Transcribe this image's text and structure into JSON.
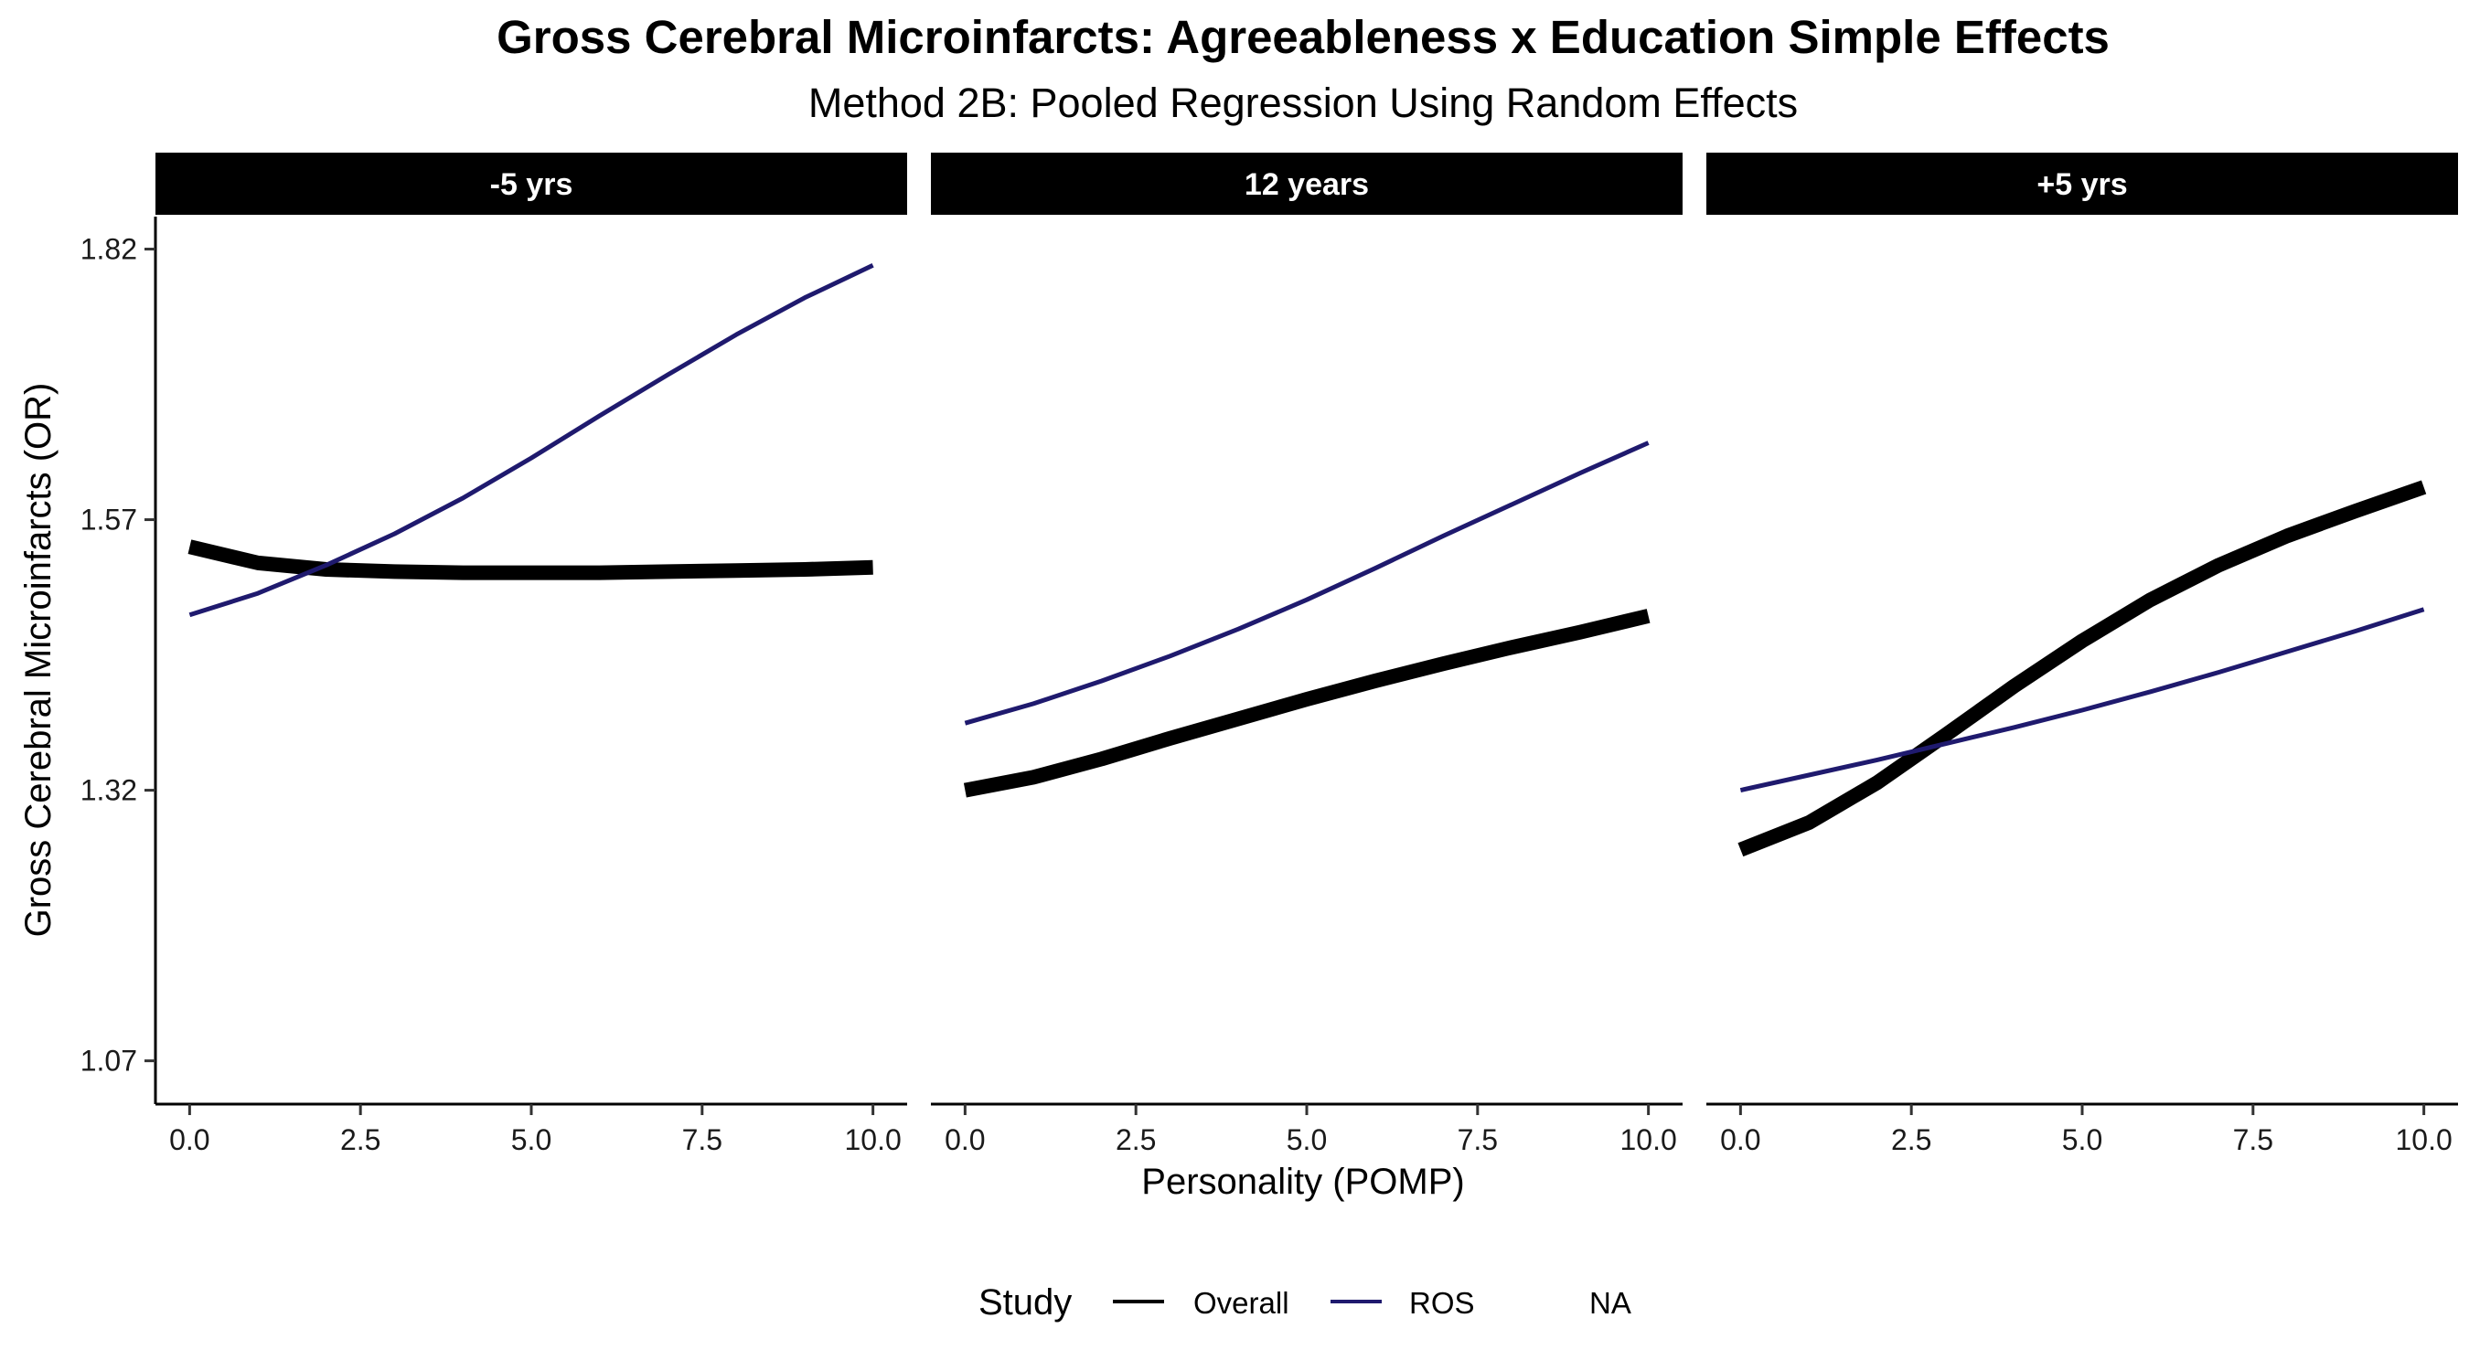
{
  "chart_data": {
    "type": "line",
    "title": "Gross Cerebral Microinfarcts: Agreeableness x Education Simple Effects",
    "subtitle": "Method 2B: Pooled Regression Using Random Effects",
    "xlabel": "Personality (POMP)",
    "ylabel": "Gross Cerebral Microinfarcts (OR)",
    "xlim": [
      -0.5,
      10.5
    ],
    "ylim": [
      1.03,
      1.85
    ],
    "x_ticks": [
      0,
      2.5,
      5,
      7.5,
      10
    ],
    "x_tick_labels": [
      "0.0",
      "2.5",
      "5.0",
      "7.5",
      "10.0"
    ],
    "y_ticks": [
      1.07,
      1.32,
      1.57,
      1.82
    ],
    "y_tick_labels": [
      "1.07",
      "1.32",
      "1.57",
      "1.82"
    ],
    "grid": false,
    "legend": {
      "title": "Study",
      "position": "bottom",
      "entries": [
        {
          "label": "Overall",
          "color": "#000000"
        },
        {
          "label": "ROS",
          "color": "#1f1a6e"
        },
        {
          "label": "NA",
          "color": ""
        }
      ]
    },
    "panels": [
      {
        "label": "-5 yrs",
        "series": [
          {
            "name": "Overall",
            "x": [
              0,
              1,
              2,
              3,
              4,
              5,
              6,
              7,
              8,
              9,
              10
            ],
            "y": [
              1.545,
              1.53,
              1.524,
              1.522,
              1.521,
              1.521,
              1.521,
              1.522,
              1.523,
              1.524,
              1.526
            ]
          },
          {
            "name": "ROS",
            "x": [
              0,
              1,
              2,
              3,
              4,
              5,
              6,
              7,
              8,
              9,
              10
            ],
            "y": [
              1.482,
              1.502,
              1.528,
              1.557,
              1.59,
              1.627,
              1.666,
              1.704,
              1.741,
              1.775,
              1.805
            ]
          }
        ]
      },
      {
        "label": "12 years",
        "series": [
          {
            "name": "Overall",
            "x": [
              0,
              1,
              2,
              3,
              4,
              5,
              6,
              7,
              8,
              9,
              10
            ],
            "y": [
              1.32,
              1.332,
              1.349,
              1.368,
              1.386,
              1.404,
              1.421,
              1.437,
              1.452,
              1.466,
              1.481
            ]
          },
          {
            "name": "ROS",
            "x": [
              0,
              1,
              2,
              3,
              4,
              5,
              6,
              7,
              8,
              9,
              10
            ],
            "y": [
              1.382,
              1.4,
              1.421,
              1.444,
              1.469,
              1.496,
              1.525,
              1.555,
              1.584,
              1.613,
              1.641
            ]
          }
        ]
      },
      {
        "label": "+5 yrs",
        "series": [
          {
            "name": "Overall",
            "x": [
              0,
              1,
              2,
              3,
              4,
              5,
              6,
              7,
              8,
              9,
              10
            ],
            "y": [
              1.265,
              1.29,
              1.327,
              1.371,
              1.416,
              1.458,
              1.496,
              1.528,
              1.555,
              1.578,
              1.6
            ]
          },
          {
            "name": "ROS",
            "x": [
              0,
              1,
              2,
              3,
              4,
              5,
              6,
              7,
              8,
              9,
              10
            ],
            "y": [
              1.32,
              1.334,
              1.348,
              1.363,
              1.378,
              1.394,
              1.411,
              1.429,
              1.448,
              1.467,
              1.487
            ]
          }
        ]
      }
    ]
  }
}
